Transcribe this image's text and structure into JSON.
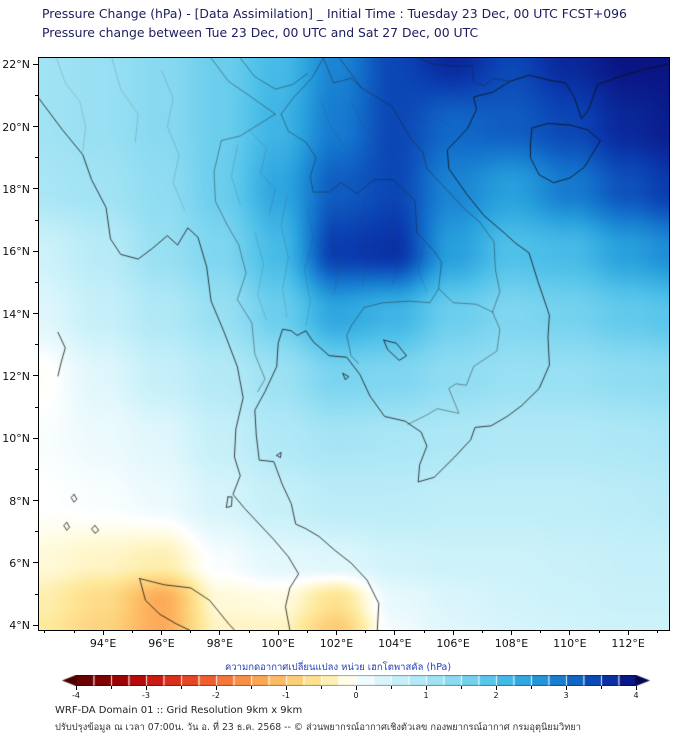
{
  "header": {
    "title_line1": "Pressure Change (hPa) - [Data Assimilation] _ Initial Time : Tuesday 23 Dec, 00 UTC FCST+096",
    "title_line2": "Pressure change between Tue 23 Dec, 00 UTC and Sat 27 Dec, 00 UTC"
  },
  "colorbar": {
    "label": "ความกดอากาศเปลี่ยนแปลง หน่วย เฮกโตพาสคัล (hPa)",
    "tick_labels": [
      "-4",
      "-3",
      "-2",
      "-1",
      "0",
      "1",
      "2",
      "3",
      "4"
    ],
    "tick_values": [
      -4,
      -3,
      -2,
      -1,
      0,
      1,
      2,
      3,
      4
    ],
    "min": -4,
    "max": 4,
    "step": 0.25
  },
  "footer": {
    "line1": "WRF-DA Domain 01 :: Grid Resolution 9km x 9km",
    "line2": "ปรับปรุงข้อมูล ณ เวลา 07:00น. วัน อ. ที่ 23 ธ.ค. 2568 -- © ส่วนพยากรณ์อากาศเชิงตัวเลข กองพยากรณ์อากาศ กรมอุตุนิยมวิทยา"
  },
  "chart_data": {
    "type": "heatmap",
    "title": "Pressure Change (hPa) - [Data Assimilation]",
    "subtitle": "Pressure change between Tue 23 Dec, 00 UTC and Sat 27 Dec, 00 UTC",
    "units": "hPa",
    "legend_position": "bottom",
    "grid_lines": false,
    "lon_range": [
      91.8,
      113.4
    ],
    "lat_range": [
      3.85,
      22.2
    ],
    "x_ticks": {
      "values": [
        94,
        96,
        98,
        100,
        102,
        104,
        106,
        108,
        110,
        112
      ],
      "labels": [
        "94°E",
        "96°E",
        "98°E",
        "100°E",
        "102°E",
        "104°E",
        "106°E",
        "108°E",
        "110°E",
        "112°E"
      ]
    },
    "y_ticks": {
      "values": [
        4,
        6,
        8,
        10,
        12,
        14,
        16,
        18,
        20,
        22
      ],
      "labels": [
        "4°N",
        "6°N",
        "8°N",
        "10°N",
        "12°N",
        "14°N",
        "16°N",
        "18°N",
        "20°N",
        "22°N"
      ]
    },
    "grid": {
      "lons": [
        91.8,
        94,
        96,
        98,
        100,
        102,
        104,
        106,
        108,
        110,
        112,
        113.4
      ],
      "lats": [
        22.2,
        20,
        18,
        16,
        14,
        12,
        10,
        8,
        6,
        4.8,
        3.85
      ],
      "values_hpa": [
        [
          1.1,
          1.2,
          1.4,
          1.7,
          2.1,
          2.8,
          3.4,
          3.7,
          3.4,
          3.7,
          3.9,
          3.9
        ],
        [
          1.1,
          1.2,
          1.4,
          1.7,
          2.2,
          2.9,
          3.4,
          3.1,
          3.2,
          3.4,
          3.7,
          3.8
        ],
        [
          1.0,
          1.1,
          1.3,
          1.7,
          2.4,
          3.2,
          3.4,
          2.8,
          2.5,
          2.9,
          3.3,
          3.5
        ],
        [
          0.5,
          0.8,
          1.2,
          1.5,
          2.1,
          3.5,
          3.6,
          2.5,
          2.0,
          2.1,
          2.5,
          2.7
        ],
        [
          0.3,
          0.6,
          0.9,
          1.2,
          1.7,
          2.4,
          2.2,
          1.7,
          1.5,
          1.6,
          1.8,
          1.9
        ],
        [
          -0.05,
          0.3,
          0.6,
          0.85,
          1.15,
          1.55,
          1.5,
          1.3,
          1.2,
          1.2,
          1.3,
          1.35
        ],
        [
          0.05,
          0.15,
          0.3,
          0.6,
          0.9,
          1.05,
          1.0,
          0.95,
          0.9,
          0.9,
          0.95,
          1.0
        ],
        [
          0.0,
          0.05,
          0.15,
          0.4,
          0.6,
          0.75,
          0.75,
          0.7,
          0.7,
          0.7,
          0.75,
          0.8
        ],
        [
          -0.2,
          -0.3,
          -0.4,
          0.05,
          0.25,
          0.3,
          0.45,
          0.5,
          0.5,
          0.55,
          0.6,
          0.6
        ],
        [
          -0.4,
          -0.7,
          -1.3,
          -0.2,
          -0.15,
          -0.6,
          0.2,
          0.35,
          0.45,
          0.5,
          0.55,
          0.55
        ],
        [
          -0.5,
          -0.8,
          -1.3,
          -0.3,
          -0.3,
          -0.9,
          0.1,
          0.3,
          0.4,
          0.45,
          0.5,
          0.5
        ]
      ]
    },
    "colorscale": [
      {
        "v": -4,
        "c": "#5e0000"
      },
      {
        "v": -3.5,
        "c": "#8f0000"
      },
      {
        "v": -3,
        "c": "#c30f0f"
      },
      {
        "v": -2.5,
        "c": "#e03a1f"
      },
      {
        "v": -2,
        "c": "#f26a33"
      },
      {
        "v": -1.5,
        "c": "#fb9a4b"
      },
      {
        "v": -1,
        "c": "#fdc56c"
      },
      {
        "v": -0.5,
        "c": "#feea9c"
      },
      {
        "v": -0.15,
        "c": "#fffce3"
      },
      {
        "v": 0,
        "c": "#ffffff"
      },
      {
        "v": 0.15,
        "c": "#ecfafd"
      },
      {
        "v": 0.5,
        "c": "#cdf2fa"
      },
      {
        "v": 1,
        "c": "#a9e6f5"
      },
      {
        "v": 1.5,
        "c": "#7fd6f0"
      },
      {
        "v": 2,
        "c": "#4fc1e9"
      },
      {
        "v": 2.5,
        "c": "#28a0dd"
      },
      {
        "v": 3,
        "c": "#1372cc"
      },
      {
        "v": 3.5,
        "c": "#0a3cb0"
      },
      {
        "v": 4,
        "c": "#0a0a78"
      }
    ]
  }
}
